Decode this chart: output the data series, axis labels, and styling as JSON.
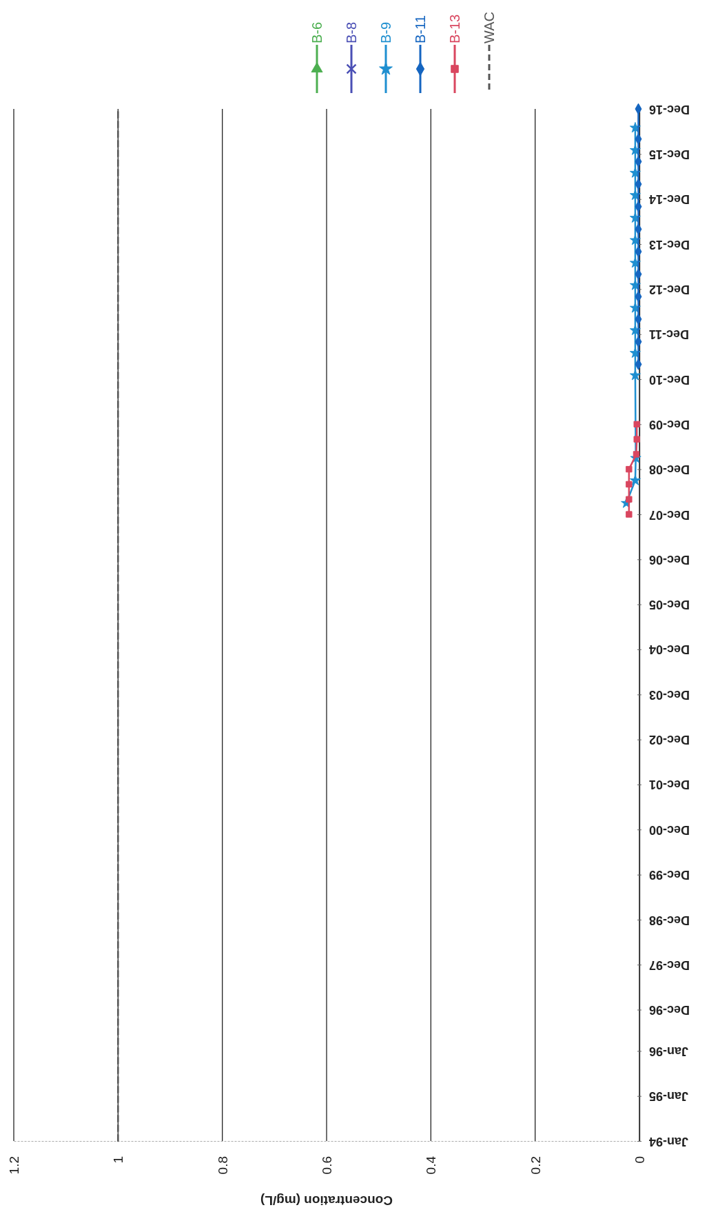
{
  "chart_data": {
    "type": "line",
    "orientation": "horizontal",
    "xlabel": "Concentration (mg/L)",
    "xlim": [
      1.2,
      0
    ],
    "xticks": [
      0,
      0.2,
      0.4,
      0.6,
      0.8,
      1,
      1.2
    ],
    "ylim": [
      "1994-01",
      "2016-12"
    ],
    "yticks": [
      {
        "value": "1994-01",
        "label": "Jan-94"
      },
      {
        "value": "1995-01",
        "label": "Jan-95"
      },
      {
        "value": "1996-01",
        "label": "Jan-96"
      },
      {
        "value": "1996-12",
        "label": "Dec-96"
      },
      {
        "value": "1997-12",
        "label": "Dec-97"
      },
      {
        "value": "1998-12",
        "label": "Dec-98"
      },
      {
        "value": "1999-12",
        "label": "Dec-99"
      },
      {
        "value": "2000-12",
        "label": "Dec-00"
      },
      {
        "value": "2001-12",
        "label": "Dec-01"
      },
      {
        "value": "2002-12",
        "label": "Dec-02"
      },
      {
        "value": "2003-12",
        "label": "Dec-03"
      },
      {
        "value": "2004-12",
        "label": "Dec-04"
      },
      {
        "value": "2005-12",
        "label": "Dec-05"
      },
      {
        "value": "2006-12",
        "label": "Dec-06"
      },
      {
        "value": "2007-12",
        "label": "Dec-07"
      },
      {
        "value": "2008-12",
        "label": "Dec-08"
      },
      {
        "value": "2009-12",
        "label": "Dec-09"
      },
      {
        "value": "2010-12",
        "label": "Dec-10"
      },
      {
        "value": "2011-12",
        "label": "Dec-11"
      },
      {
        "value": "2012-12",
        "label": "Dec-12"
      },
      {
        "value": "2013-12",
        "label": "Dec-13"
      },
      {
        "value": "2014-12",
        "label": "Dec-14"
      },
      {
        "value": "2015-12",
        "label": "Dec-15"
      },
      {
        "value": "2016-12",
        "label": "Dec-16"
      }
    ],
    "grid": "x",
    "legend": "top",
    "series": [
      {
        "name": "B-6",
        "color": "#4caf50",
        "marker": "triangle"
      },
      {
        "name": "B-8",
        "color": "#4a4fb5",
        "marker": "cross"
      },
      {
        "name": "B-9",
        "color": "#1e8fd0",
        "marker": "star",
        "x": [
          "2008-03",
          "2008-09",
          "2009-03",
          "2011-01",
          "2011-07",
          "2012-01",
          "2012-07",
          "2013-01",
          "2013-07",
          "2014-01",
          "2014-07",
          "2015-01",
          "2015-07",
          "2016-01",
          "2016-07"
        ],
        "values": [
          0.025,
          0.008,
          0.007,
          0.008,
          0.008,
          0.008,
          0.008,
          0.008,
          0.008,
          0.008,
          0.008,
          0.008,
          0.008,
          0.008,
          0.008
        ]
      },
      {
        "name": "B-11",
        "color": "#1565c0",
        "marker": "diamond",
        "x": [
          "2011-04",
          "2011-10",
          "2012-04",
          "2012-10",
          "2013-04",
          "2013-10",
          "2014-04",
          "2014-10",
          "2015-04",
          "2015-10",
          "2016-04",
          "2016-12"
        ],
        "values": [
          0.002,
          0.002,
          0.002,
          0.002,
          0.002,
          0.002,
          0.002,
          0.002,
          0.002,
          0.002,
          0.002,
          0.002
        ]
      },
      {
        "name": "B-13",
        "color": "#d9465f",
        "marker": "square",
        "x": [
          "2007-12",
          "2008-04",
          "2008-08",
          "2008-12",
          "2009-04",
          "2009-08",
          "2009-12"
        ],
        "values": [
          0.02,
          0.02,
          0.02,
          0.02,
          0.006,
          0.005,
          0.005
        ]
      },
      {
        "name": "WAC",
        "color": "#555555",
        "marker": "none",
        "line_style": "dashed",
        "x": [
          "1994-01",
          "2016-12"
        ],
        "values": [
          1,
          1
        ]
      }
    ]
  }
}
